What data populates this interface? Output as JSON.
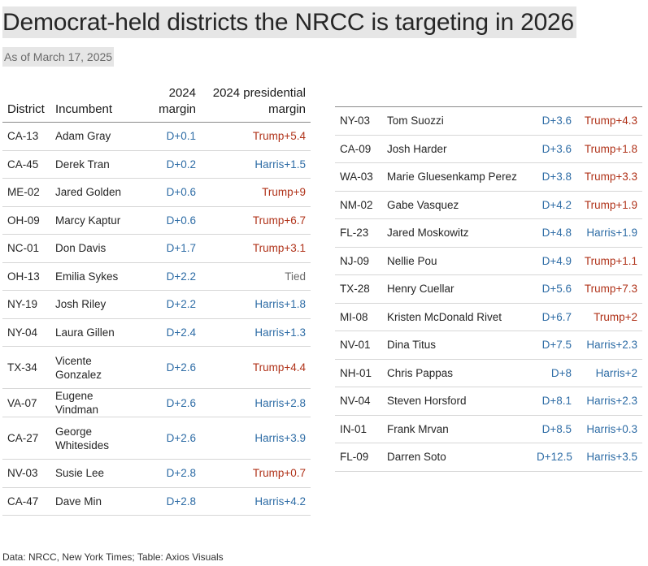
{
  "title": "Democrat-held districts the NRCC is targeting in 2026",
  "subtitle": "As of March 17, 2025",
  "headers": {
    "district": "District",
    "incumbent": "Incumbent",
    "margin_line1": "2024",
    "margin_line2": "margin",
    "pres_line1": "2024 presidential",
    "pres_line2": "margin"
  },
  "colors": {
    "democrat": "#2f6da6",
    "republican": "#b0331a",
    "tied": "#6b6b6b"
  },
  "rows_left": [
    {
      "district": "CA-13",
      "incumbent": "Adam Gray",
      "margin": "D+0.1",
      "pres": "Trump+5.4",
      "pres_party": "gop"
    },
    {
      "district": "CA-45",
      "incumbent": "Derek Tran",
      "margin": "D+0.2",
      "pres": "Harris+1.5",
      "pres_party": "dem"
    },
    {
      "district": "ME-02",
      "incumbent": "Jared Golden",
      "margin": "D+0.6",
      "pres": "Trump+9",
      "pres_party": "gop"
    },
    {
      "district": "OH-09",
      "incumbent": "Marcy Kaptur",
      "margin": "D+0.6",
      "pres": "Trump+6.7",
      "pres_party": "gop"
    },
    {
      "district": "NC-01",
      "incumbent": "Don Davis",
      "margin": "D+1.7",
      "pres": "Trump+3.1",
      "pres_party": "gop"
    },
    {
      "district": "OH-13",
      "incumbent": "Emilia Sykes",
      "margin": "D+2.2",
      "pres": "Tied",
      "pres_party": "tie"
    },
    {
      "district": "NY-19",
      "incumbent": "Josh Riley",
      "margin": "D+2.2",
      "pres": "Harris+1.8",
      "pres_party": "dem"
    },
    {
      "district": "NY-04",
      "incumbent": "Laura Gillen",
      "margin": "D+2.4",
      "pres": "Harris+1.3",
      "pres_party": "dem"
    },
    {
      "district": "TX-34",
      "incumbent": "Vicente Gonzalez",
      "margin": "D+2.6",
      "pres": "Trump+4.4",
      "pres_party": "gop"
    },
    {
      "district": "VA-07",
      "incumbent": "Eugene Vindman",
      "margin": "D+2.6",
      "pres": "Harris+2.8",
      "pres_party": "dem"
    },
    {
      "district": "CA-27",
      "incumbent": "George Whitesides",
      "margin": "D+2.6",
      "pres": "Harris+3.9",
      "pres_party": "dem"
    },
    {
      "district": "NV-03",
      "incumbent": "Susie Lee",
      "margin": "D+2.8",
      "pres": "Trump+0.7",
      "pres_party": "gop"
    },
    {
      "district": "CA-47",
      "incumbent": "Dave Min",
      "margin": "D+2.8",
      "pres": "Harris+4.2",
      "pres_party": "dem"
    }
  ],
  "rows_right": [
    {
      "district": "NY-03",
      "incumbent": "Tom Suozzi",
      "margin": "D+3.6",
      "pres": "Trump+4.3",
      "pres_party": "gop"
    },
    {
      "district": "CA-09",
      "incumbent": "Josh Harder",
      "margin": "D+3.6",
      "pres": "Trump+1.8",
      "pres_party": "gop"
    },
    {
      "district": "WA-03",
      "incumbent": "Marie Gluesenkamp Perez",
      "margin": "D+3.8",
      "pres": "Trump+3.3",
      "pres_party": "gop"
    },
    {
      "district": "NM-02",
      "incumbent": "Gabe Vasquez",
      "margin": "D+4.2",
      "pres": "Trump+1.9",
      "pres_party": "gop"
    },
    {
      "district": "FL-23",
      "incumbent": "Jared Moskowitz",
      "margin": "D+4.8",
      "pres": "Harris+1.9",
      "pres_party": "dem"
    },
    {
      "district": "NJ-09",
      "incumbent": "Nellie Pou",
      "margin": "D+4.9",
      "pres": "Trump+1.1",
      "pres_party": "gop"
    },
    {
      "district": "TX-28",
      "incumbent": "Henry Cuellar",
      "margin": "D+5.6",
      "pres": "Trump+7.3",
      "pres_party": "gop"
    },
    {
      "district": "MI-08",
      "incumbent": "Kristen McDonald Rivet",
      "margin": "D+6.7",
      "pres": "Trump+2",
      "pres_party": "gop"
    },
    {
      "district": "NV-01",
      "incumbent": "Dina Titus",
      "margin": "D+7.5",
      "pres": "Harris+2.3",
      "pres_party": "dem"
    },
    {
      "district": "NH-01",
      "incumbent": "Chris Pappas",
      "margin": "D+8",
      "pres": "Harris+2",
      "pres_party": "dem"
    },
    {
      "district": "NV-04",
      "incumbent": "Steven Horsford",
      "margin": "D+8.1",
      "pres": "Harris+2.3",
      "pres_party": "dem"
    },
    {
      "district": "IN-01",
      "incumbent": "Frank Mrvan",
      "margin": "D+8.5",
      "pres": "Harris+0.3",
      "pres_party": "dem"
    },
    {
      "district": "FL-09",
      "incumbent": "Darren Soto",
      "margin": "D+12.5",
      "pres": "Harris+3.5",
      "pres_party": "dem"
    }
  ],
  "footer": "Data: NRCC, New York Times; Table: Axios Visuals"
}
